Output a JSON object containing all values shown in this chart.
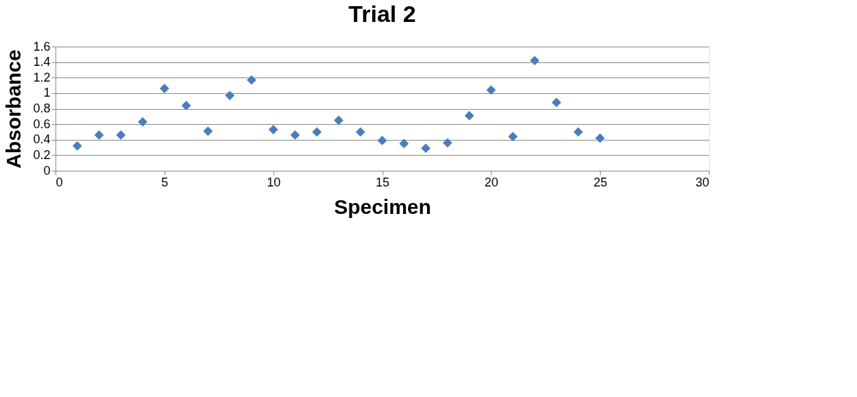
{
  "chart_data": {
    "type": "scatter",
    "title": "Trial 2",
    "xlabel": "Specimen",
    "ylabel": "Absorbance",
    "x": [
      1,
      2,
      3,
      4,
      5,
      6,
      7,
      8,
      9,
      10,
      11,
      12,
      13,
      14,
      15,
      16,
      17,
      18,
      19,
      20,
      21,
      22,
      23,
      24,
      25
    ],
    "series": [
      {
        "color": "#4a7ebb",
        "values": [
          0.32,
          0.46,
          0.46,
          0.63,
          1.06,
          0.84,
          0.51,
          0.97,
          1.17,
          0.53,
          0.46,
          0.5,
          0.65,
          0.5,
          0.39,
          0.35,
          0.29,
          0.36,
          0.71,
          1.04,
          0.44,
          1.42,
          0.88,
          0.5,
          0.42
        ]
      }
    ],
    "xlim": [
      0,
      30
    ],
    "xticks": [
      0,
      5,
      10,
      15,
      20,
      25,
      30
    ],
    "ylim": [
      0,
      1.6
    ],
    "yticks": [
      0,
      0.2,
      0.4,
      0.6,
      0.8,
      1,
      1.2,
      1.4,
      1.6
    ],
    "grid": "y",
    "marker": "diamond"
  }
}
